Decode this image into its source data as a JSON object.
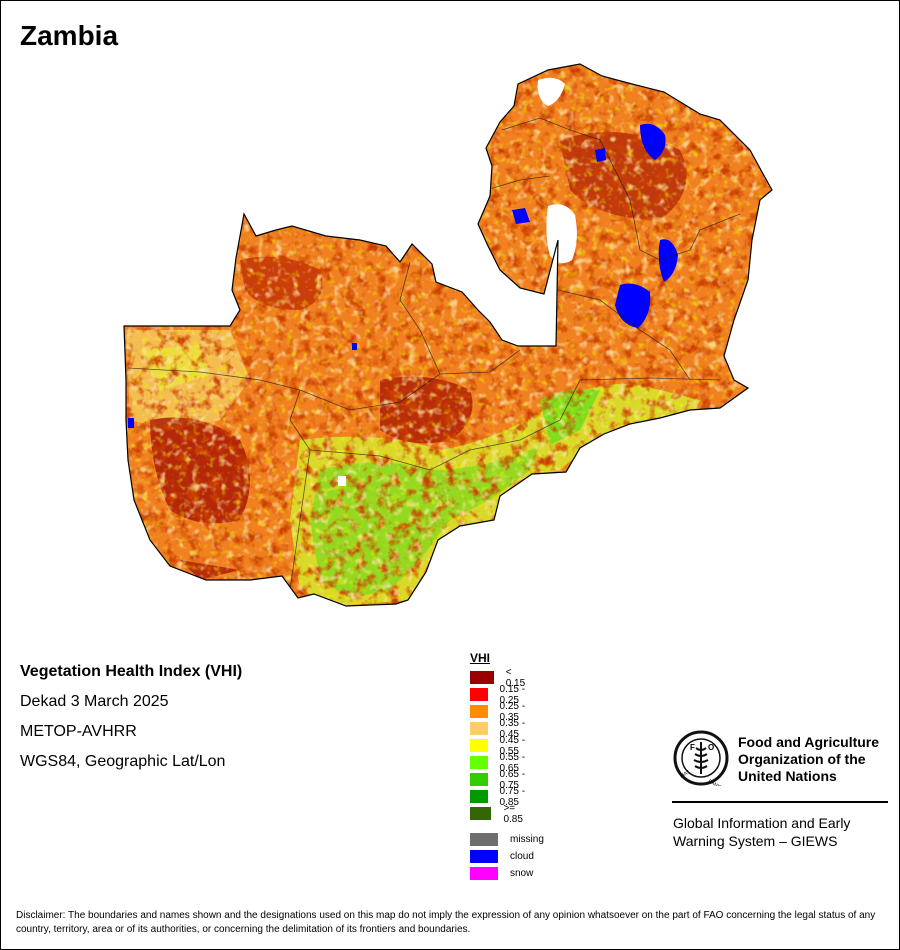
{
  "map": {
    "title": "Zambia"
  },
  "info": {
    "index_name": "Vegetation Health Index (VHI)",
    "period": "Dekad 3 March 2025",
    "sensor": "METOP-AVHRR",
    "projection": "WGS84, Geographic Lat/Lon"
  },
  "legend": {
    "title": "VHI",
    "classes": [
      {
        "label": "< 0.15",
        "color": "#990000"
      },
      {
        "label": "0.15 - 0.25",
        "color": "#ff0000"
      },
      {
        "label": "0.25 - 0.35",
        "color": "#ff8c00"
      },
      {
        "label": "0.35 - 0.45",
        "color": "#ffcc66"
      },
      {
        "label": "0.45 - 0.55",
        "color": "#ffff00"
      },
      {
        "label": "0.55 - 0.65",
        "color": "#66ff00"
      },
      {
        "label": "0.65 - 0.75",
        "color": "#33cc00"
      },
      {
        "label": "0.75 - 0.85",
        "color": "#009900"
      },
      {
        "label": ">= 0.85",
        "color": "#336600"
      }
    ],
    "special": [
      {
        "label": "missing",
        "color": "#6e6e6e"
      },
      {
        "label": "cloud",
        "color": "#0000ff"
      },
      {
        "label": "snow",
        "color": "#ff00ff"
      }
    ]
  },
  "logo": {
    "org_line1": "Food and Agriculture",
    "org_line2": "Organization of the",
    "org_line3": "United Nations",
    "emblem_text": "FAO FIAT PANIS",
    "system_line1": "Global Information and Early",
    "system_line2": "Warning System – GIEWS"
  },
  "disclaimer": "Disclaimer: The boundaries and names shown and the designations used on this map do not imply the expression of any opinion whatsoever on the part of FAO concerning the legal status of any country, territory, area or of its authorities, or concerning the delimitation of its frontiers and boundaries."
}
